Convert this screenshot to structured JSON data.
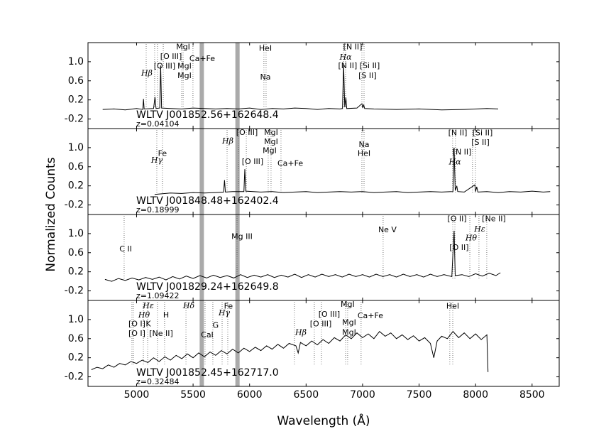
{
  "chart_data": [
    {
      "type": "line",
      "name": "WLTV J001852.56+162648.4",
      "redshift": "z=0.04104",
      "color": "#000000",
      "xlim": [
        4570,
        8740
      ],
      "xticks": [
        5000,
        5500,
        6000,
        6500,
        7000,
        7500,
        8000,
        8500
      ],
      "ylim": [
        -0.4,
        1.4
      ],
      "yticks": [
        {
          "value": 1,
          "label": "1.0"
        },
        0.6,
        0.2,
        -0.2
      ],
      "sky_bands": [
        5577,
        5893
      ],
      "x": [
        4700,
        4800,
        4900,
        5000,
        5055,
        5061,
        5067,
        5150,
        5163,
        5172,
        5205,
        5213,
        5221,
        5300,
        5400,
        5500,
        5600,
        5700,
        5800,
        5900,
        6000,
        6100,
        6200,
        6300,
        6400,
        6500,
        6600,
        6700,
        6800,
        6822,
        6832,
        6842,
        6852,
        6860,
        6950,
        6994,
        7002,
        7010,
        7018,
        7100,
        7300,
        7500,
        7700,
        7900,
        8100,
        8200
      ],
      "values": [
        0.0,
        0.01,
        -0.01,
        0.02,
        0.0,
        0.22,
        0.01,
        0.02,
        0.26,
        0.02,
        0.03,
        0.92,
        0.03,
        0.02,
        0.01,
        0.03,
        0.02,
        0.01,
        0.02,
        0.01,
        0.03,
        0.0,
        0.02,
        0.01,
        0.03,
        0.02,
        0.0,
        0.02,
        0.01,
        0.02,
        0.95,
        0.05,
        0.25,
        0.02,
        0.03,
        0.12,
        0.03,
        0.1,
        0.02,
        0.01,
        0.0,
        0.01,
        -0.01,
        0.0,
        0.02,
        0.01
      ],
      "lines": [
        5085,
        5160,
        5185,
        5236,
        5399,
        5412,
        5499,
        6127,
        6146,
        6831,
        6850,
        6994,
        7013
      ],
      "annotations": [
        {
          "text": "Hβ",
          "x": 5091,
          "y": 0.75
        },
        {
          "text": "[O III]",
          "x": 5248,
          "y": 0.9
        },
        {
          "text": "[O III]",
          "x": 5305,
          "y": 1.1
        },
        {
          "text": "MgI",
          "x": 5412,
          "y": 1.3
        },
        {
          "text": "MgI",
          "x": 5424,
          "y": 0.9
        },
        {
          "text": "MgI",
          "x": 5424,
          "y": 0.7
        },
        {
          "text": "Ca+Fe",
          "x": 5581,
          "y": 1.06
        },
        {
          "text": "HeI",
          "x": 6140,
          "y": 1.27
        },
        {
          "text": "Na",
          "x": 6140,
          "y": 0.67
        },
        {
          "text": "[N II]",
          "x": 6913,
          "y": 1.3
        },
        {
          "text": "Hα",
          "x": 6850,
          "y": 1.09
        },
        {
          "text": "[N II]",
          "x": 6868,
          "y": 0.91
        },
        {
          "text": "[Si II]",
          "x": 7063,
          "y": 0.91
        },
        {
          "text": "[S II]",
          "x": 7044,
          "y": 0.7
        }
      ]
    },
    {
      "type": "line",
      "name": "WLTV J001848.48+162402.4",
      "redshift": "z=0.18999",
      "color": "#000000",
      "xlim": [
        4570,
        8740
      ],
      "xticks": [
        5000,
        5500,
        6000,
        6500,
        7000,
        7500,
        8000,
        8500
      ],
      "ylim": [
        -0.4,
        1.4
      ],
      "yticks": [
        {
          "value": 1,
          "label": "1.0"
        },
        0.6,
        0.2,
        -0.2
      ],
      "sky_bands": [
        5577,
        5893
      ],
      "x": [
        5160,
        5300,
        5400,
        5500,
        5600,
        5700,
        5770,
        5778,
        5786,
        5850,
        5950,
        5958,
        5966,
        6100,
        6200,
        6300,
        6400,
        6500,
        6600,
        6700,
        6800,
        6900,
        7000,
        7100,
        7200,
        7300,
        7400,
        7500,
        7600,
        7700,
        7800,
        7810,
        7820,
        7834,
        7842,
        7900,
        7993,
        8000,
        8010,
        8020,
        8100,
        8200,
        8300,
        8400,
        8500,
        8600,
        8660
      ],
      "values": [
        0.02,
        0.05,
        0.04,
        0.06,
        0.05,
        0.06,
        0.07,
        0.32,
        0.07,
        0.08,
        0.08,
        0.55,
        0.09,
        0.07,
        0.08,
        0.06,
        0.07,
        0.08,
        0.06,
        0.07,
        0.08,
        0.07,
        0.08,
        0.06,
        0.07,
        0.08,
        0.06,
        0.07,
        0.08,
        0.07,
        0.08,
        1.0,
        0.1,
        0.2,
        0.08,
        0.07,
        0.22,
        0.08,
        0.18,
        0.07,
        0.08,
        0.06,
        0.08,
        0.07,
        0.09,
        0.07,
        0.08
      ],
      "lines": [
        5179,
        5229,
        5801,
        5902,
        5971,
        6165,
        6190,
        6278,
        6994,
        7013,
        7797,
        7822,
        7973,
        7999
      ],
      "annotations": [
        {
          "text": "Fe",
          "x": 5229,
          "y": 0.87
        },
        {
          "text": "Hγ",
          "x": 5179,
          "y": 0.73
        },
        {
          "text": "Hβ",
          "x": 5807,
          "y": 1.13
        },
        {
          "text": "[O III]",
          "x": 5977,
          "y": 1.31
        },
        {
          "text": "MgI",
          "x": 6190,
          "y": 1.31
        },
        {
          "text": "MgI",
          "x": 6190,
          "y": 1.12
        },
        {
          "text": "MgI",
          "x": 6178,
          "y": 0.93
        },
        {
          "text": "[O III]",
          "x": 6027,
          "y": 0.7
        },
        {
          "text": "Ca+Fe",
          "x": 6360,
          "y": 0.66
        },
        {
          "text": "Na",
          "x": 7013,
          "y": 1.06
        },
        {
          "text": "HeI",
          "x": 7013,
          "y": 0.87
        },
        {
          "text": "[N II]",
          "x": 7842,
          "y": 1.3
        },
        {
          "text": "[Si II]",
          "x": 8062,
          "y": 1.3
        },
        {
          "text": "[S II]",
          "x": 8043,
          "y": 1.1
        },
        {
          "text": "[N II]",
          "x": 7880,
          "y": 0.9
        },
        {
          "text": "Hα",
          "x": 7817,
          "y": 0.69
        }
      ]
    },
    {
      "type": "line",
      "name": "WLTV J001829.24+162649.8",
      "redshift": "z=1.09422",
      "color": "#000000",
      "xlim": [
        4570,
        8740
      ],
      "xticks": [
        5000,
        5500,
        6000,
        6500,
        7000,
        7500,
        8000,
        8500
      ],
      "ylim": [
        -0.4,
        1.4
      ],
      "yticks": [
        {
          "value": 1,
          "label": "1.0"
        },
        0.6,
        0.2,
        -0.2
      ],
      "sky_bands": [
        5577,
        5893
      ],
      "x": [
        4720,
        4780,
        4840,
        4900,
        4960,
        5020,
        5080,
        5140,
        5200,
        5260,
        5320,
        5380,
        5440,
        5500,
        5560,
        5620,
        5680,
        5740,
        5800,
        5860,
        5920,
        5980,
        6040,
        6100,
        6160,
        6220,
        6280,
        6340,
        6400,
        6460,
        6520,
        6580,
        6640,
        6700,
        6760,
        6820,
        6880,
        6940,
        7000,
        7060,
        7120,
        7180,
        7240,
        7300,
        7360,
        7420,
        7480,
        7540,
        7600,
        7660,
        7720,
        7790,
        7800,
        7810,
        7820,
        7880,
        7940,
        8000,
        8060,
        8120,
        8180,
        8220
      ],
      "values": [
        0.04,
        0.0,
        0.06,
        0.02,
        0.07,
        0.03,
        0.08,
        0.04,
        0.09,
        0.03,
        0.1,
        0.05,
        0.11,
        0.06,
        0.12,
        0.07,
        0.13,
        0.08,
        0.12,
        0.07,
        0.14,
        0.08,
        0.13,
        0.09,
        0.14,
        0.08,
        0.13,
        0.09,
        0.15,
        0.08,
        0.14,
        0.09,
        0.15,
        0.1,
        0.14,
        0.09,
        0.15,
        0.1,
        0.14,
        0.09,
        0.15,
        0.1,
        0.14,
        0.09,
        0.15,
        0.1,
        0.14,
        0.09,
        0.15,
        0.1,
        0.14,
        0.1,
        0.6,
        1.06,
        0.12,
        0.14,
        0.1,
        0.16,
        0.11,
        0.17,
        0.12,
        0.18
      ],
      "lines": [
        4890,
        5889,
        7182,
        7798,
        7817,
        7949,
        8030,
        8099
      ],
      "annotations": [
        {
          "text": "C II",
          "x": 4903,
          "y": 0.67
        },
        {
          "text": "Mg III",
          "x": 5933,
          "y": 0.93
        },
        {
          "text": "Ne V",
          "x": 7220,
          "y": 1.07
        },
        {
          "text": "[O II]",
          "x": 7836,
          "y": 1.3
        },
        {
          "text": "[Ne II]",
          "x": 8162,
          "y": 1.3
        },
        {
          "text": "Hε",
          "x": 8037,
          "y": 1.09
        },
        {
          "text": "Hθ",
          "x": 7961,
          "y": 0.9
        },
        {
          "text": "[O II]",
          "x": 7854,
          "y": 0.7
        }
      ]
    },
    {
      "type": "line",
      "name": "WLTV J001852.45+162717.0",
      "redshift": "z=0.32484",
      "color": "#000000",
      "xlabel": "Wavelength (Å)",
      "ylabel": "Normalized Counts",
      "xlim": [
        4570,
        8740
      ],
      "xticks": [
        5000,
        5500,
        6000,
        6500,
        7000,
        7500,
        8000,
        8500
      ],
      "ylim": [
        -0.4,
        1.4
      ],
      "yticks": [
        {
          "value": 1,
          "label": "1.0"
        },
        0.6,
        0.2,
        -0.2
      ],
      "sky_bands": [
        5577,
        5893
      ],
      "x": [
        4600,
        4650,
        4700,
        4750,
        4800,
        4850,
        4900,
        4950,
        5000,
        5050,
        5100,
        5150,
        5200,
        5250,
        5300,
        5350,
        5400,
        5450,
        5500,
        5550,
        5600,
        5650,
        5700,
        5750,
        5800,
        5850,
        5900,
        5950,
        6000,
        6050,
        6100,
        6150,
        6200,
        6250,
        6300,
        6350,
        6410,
        6430,
        6450,
        6500,
        6550,
        6600,
        6650,
        6700,
        6750,
        6800,
        6850,
        6900,
        6950,
        7000,
        7050,
        7100,
        7150,
        7200,
        7250,
        7300,
        7350,
        7400,
        7450,
        7500,
        7550,
        7600,
        7630,
        7660,
        7700,
        7750,
        7800,
        7850,
        7900,
        7950,
        8000,
        8050,
        8100,
        8110
      ],
      "values": [
        -0.05,
        0.0,
        -0.03,
        0.05,
        0.0,
        0.08,
        0.05,
        0.12,
        0.08,
        0.15,
        0.1,
        0.2,
        0.12,
        0.22,
        0.15,
        0.25,
        0.18,
        0.28,
        0.2,
        0.3,
        0.22,
        0.32,
        0.25,
        0.35,
        0.28,
        0.38,
        0.3,
        0.4,
        0.33,
        0.42,
        0.35,
        0.45,
        0.38,
        0.48,
        0.4,
        0.5,
        0.45,
        0.3,
        0.52,
        0.45,
        0.55,
        0.47,
        0.58,
        0.5,
        0.62,
        0.55,
        0.68,
        0.6,
        0.72,
        0.62,
        0.7,
        0.6,
        0.75,
        0.65,
        0.72,
        0.6,
        0.68,
        0.58,
        0.66,
        0.55,
        0.62,
        0.5,
        0.2,
        0.55,
        0.65,
        0.6,
        0.75,
        0.62,
        0.72,
        0.6,
        0.7,
        0.58,
        0.68,
        -0.1
      ],
      "lines": [
        4959,
        4972,
        5060,
        5098,
        5185,
        5248,
        5437,
        5606,
        5675,
        5757,
        5807,
        6397,
        6573,
        6636,
        6850,
        6868,
        6987,
        7772,
        7798
      ],
      "annotations": [
        {
          "text": "[O I]",
          "x": 5003,
          "y": 0.9
        },
        {
          "text": "[O I]",
          "x": 5003,
          "y": 0.7
        },
        {
          "text": "Hε",
          "x": 5104,
          "y": 1.28
        },
        {
          "text": "Hθ",
          "x": 5066,
          "y": 1.09
        },
        {
          "text": "K",
          "x": 5104,
          "y": 0.9
        },
        {
          "text": "[Ne II]",
          "x": 5217,
          "y": 0.7
        },
        {
          "text": "H",
          "x": 5261,
          "y": 1.09
        },
        {
          "text": "Hδ",
          "x": 5462,
          "y": 1.28
        },
        {
          "text": "CaI",
          "x": 5625,
          "y": 0.67
        },
        {
          "text": "G",
          "x": 5700,
          "y": 0.87
        },
        {
          "text": "Fe",
          "x": 5813,
          "y": 1.27
        },
        {
          "text": "Hγ",
          "x": 5776,
          "y": 1.13
        },
        {
          "text": "Hβ",
          "x": 6454,
          "y": 0.72
        },
        {
          "text": "[O III]",
          "x": 6705,
          "y": 1.1
        },
        {
          "text": "[O III]",
          "x": 6630,
          "y": 0.9
        },
        {
          "text": "MgI",
          "x": 6868,
          "y": 1.31
        },
        {
          "text": "MgI",
          "x": 6881,
          "y": 0.93
        },
        {
          "text": "MgI",
          "x": 6881,
          "y": 0.72
        },
        {
          "text": "Ca+Fe",
          "x": 7069,
          "y": 1.07
        },
        {
          "text": "HeI",
          "x": 7798,
          "y": 1.27
        }
      ]
    }
  ]
}
